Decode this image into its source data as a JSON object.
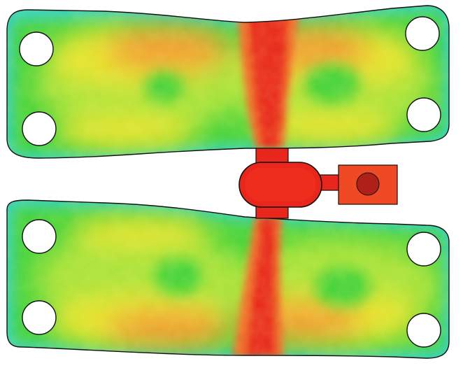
{
  "image": {
    "subject": "flow-simulation-contour-plot",
    "palette": {
      "background": "#ffffff",
      "edge_cyan": "#2fd0c8",
      "green": "#3fd23a",
      "lime": "#a8e23a",
      "yellow": "#e6e32f",
      "orange": "#f0a030",
      "orange_red": "#f06a2a",
      "red": "#e8261c",
      "dark_red": "#b0201a",
      "hole": "#ffffff",
      "outline": "#111111"
    },
    "plates": [
      {
        "id": "upper-plate",
        "vortex_count": 2,
        "hole_count": 4
      },
      {
        "id": "lower-plate",
        "vortex_count": 2,
        "hole_count": 4
      }
    ],
    "channels": [
      {
        "id": "upper-channel"
      },
      {
        "id": "lower-channel"
      }
    ],
    "features": [
      "central-bulb",
      "side-tab",
      "tab-marker"
    ]
  }
}
